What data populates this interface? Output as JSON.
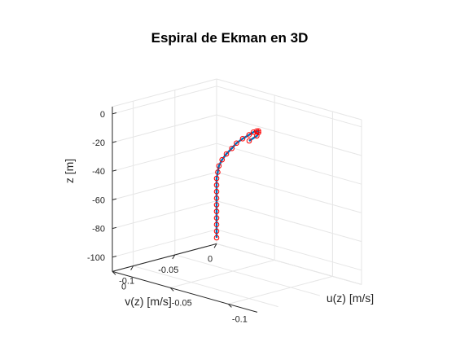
{
  "chart_data": {
    "type": "line",
    "projection": "3d",
    "title": "Espiral de Ekman en 3D",
    "xlabel": "u(z) [m/s]",
    "ylabel": "v(z) [m/s]",
    "zlabel": "z [m]",
    "x_ticks": [
      "-0.1",
      "-0.05",
      "0"
    ],
    "y_ticks": [
      "-0.1",
      "-0.05",
      "0"
    ],
    "z_ticks": [
      "0",
      "-20",
      "-40",
      "-60",
      "-80",
      "-100"
    ],
    "xlim": [
      -0.12,
      0.005
    ],
    "ylim": [
      -0.12,
      0.005
    ],
    "zlim": [
      -110,
      5
    ],
    "grid": true,
    "series": [
      {
        "marker": "circle",
        "line_color": "#0072BD",
        "marker_color": "#FF0000",
        "x": [
          -0.1,
          -0.085,
          -0.07,
          -0.057,
          -0.046,
          -0.036,
          -0.028,
          -0.021,
          -0.015,
          -0.011,
          -0.007,
          -0.004,
          -0.002,
          -0.001,
          0.0,
          0.0,
          0.0,
          0.0,
          0.0,
          0.0,
          0.0,
          0.0,
          0.0,
          0.0
        ],
        "y": [
          -0.1,
          -0.07,
          -0.047,
          -0.029,
          -0.016,
          -0.006,
          0.0,
          0.002,
          0.003,
          0.003,
          0.002,
          0.001,
          0.0,
          0.0,
          0.0,
          0.0,
          0.0,
          0.0,
          0.0,
          0.0,
          0.0,
          0.0,
          0.0,
          0.0
        ],
        "z": [
          0,
          -4.6,
          -9.2,
          -13.8,
          -18.4,
          -23,
          -27.6,
          -32.2,
          -36.8,
          -41.4,
          -46,
          -50.6,
          -55.2,
          -59.8,
          -64.4,
          -69,
          -73.6,
          -78.2,
          -82.8,
          -87.4,
          -92,
          -96.6,
          -101.2,
          -105.8
        ]
      }
    ]
  }
}
